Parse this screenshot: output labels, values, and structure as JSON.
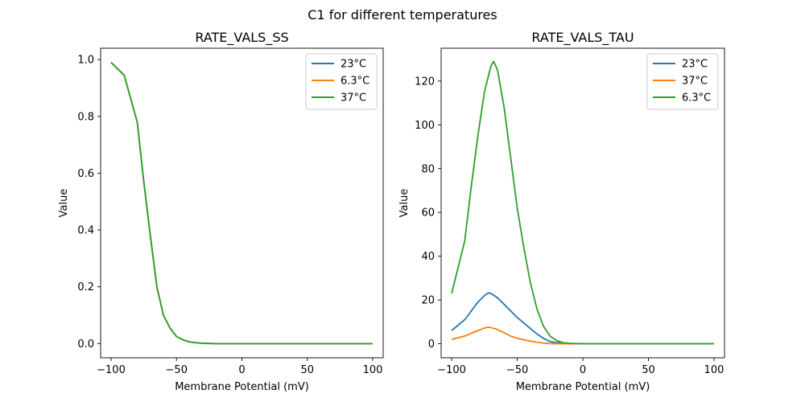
{
  "figure": {
    "suptitle": "C1 for different temperatures"
  },
  "chart_data": [
    {
      "type": "line",
      "title": "RATE_VALS_SS",
      "xlabel": "Membrane Potential (mV)",
      "ylabel": "Value",
      "xlim": [
        -108,
        108
      ],
      "ylim": [
        -0.05,
        1.04
      ],
      "xticks": [
        -100,
        -50,
        0,
        50,
        100
      ],
      "yticks": [
        0.0,
        0.2,
        0.4,
        0.6,
        0.8,
        1.0
      ],
      "xtick_labels": [
        "−100",
        "−50",
        "0",
        "50",
        "100"
      ],
      "ytick_labels": [
        "0.0",
        "0.2",
        "0.4",
        "0.6",
        "0.8",
        "1.0"
      ],
      "grid": false,
      "legend": "top-right",
      "series": [
        {
          "name": "23°C",
          "color": "#1f77b4",
          "x": [
            -100,
            -90,
            -80,
            -75,
            -70,
            -65,
            -60,
            -55,
            -50,
            -45,
            -40,
            -35,
            -30,
            -20,
            0,
            50,
            100
          ],
          "y": [
            0.99,
            0.945,
            0.78,
            0.57,
            0.38,
            0.2,
            0.1,
            0.055,
            0.025,
            0.013,
            0.006,
            0.003,
            0.001,
            0.0,
            0.0,
            0.0,
            0.0
          ]
        },
        {
          "name": "6.3°C",
          "color": "#ff7f0e",
          "x": [
            -100,
            -90,
            -80,
            -75,
            -70,
            -65,
            -60,
            -55,
            -50,
            -45,
            -40,
            -35,
            -30,
            -20,
            0,
            50,
            100
          ],
          "y": [
            0.99,
            0.945,
            0.78,
            0.57,
            0.38,
            0.2,
            0.1,
            0.055,
            0.025,
            0.013,
            0.006,
            0.003,
            0.001,
            0.0,
            0.0,
            0.0,
            0.0
          ]
        },
        {
          "name": "37°C",
          "color": "#2ca02c",
          "x": [
            -100,
            -90,
            -80,
            -75,
            -70,
            -65,
            -60,
            -55,
            -50,
            -45,
            -40,
            -35,
            -30,
            -20,
            0,
            50,
            100
          ],
          "y": [
            0.99,
            0.945,
            0.78,
            0.57,
            0.38,
            0.2,
            0.1,
            0.055,
            0.025,
            0.013,
            0.006,
            0.003,
            0.001,
            0.0,
            0.0,
            0.0,
            0.0
          ]
        }
      ]
    },
    {
      "type": "line",
      "title": "RATE_VALS_TAU",
      "xlabel": "Membrane Potential (mV)",
      "ylabel": "Value",
      "xlim": [
        -108,
        108
      ],
      "ylim": [
        -6.4,
        135
      ],
      "xticks": [
        -100,
        -50,
        0,
        50,
        100
      ],
      "yticks": [
        0,
        20,
        40,
        60,
        80,
        100,
        120
      ],
      "xtick_labels": [
        "−100",
        "−50",
        "0",
        "50",
        "100"
      ],
      "ytick_labels": [
        "0",
        "20",
        "40",
        "60",
        "80",
        "100",
        "120"
      ],
      "grid": false,
      "legend": "top-right",
      "series": [
        {
          "name": "23°C",
          "color": "#1f77b4",
          "x": [
            -100,
            -90,
            -85,
            -80,
            -75,
            -72,
            -70,
            -65,
            -60,
            -55,
            -50,
            -45,
            -40,
            -35,
            -30,
            -25,
            -20,
            -10,
            0,
            50,
            100
          ],
          "y": [
            6,
            11,
            15,
            19,
            22,
            23.2,
            23,
            21,
            18,
            15,
            12,
            9.5,
            7,
            4.5,
            2.5,
            1,
            0.5,
            0.1,
            0,
            0,
            0
          ]
        },
        {
          "name": "37°C",
          "color": "#ff7f0e",
          "x": [
            -100,
            -90,
            -85,
            -80,
            -75,
            -72,
            -70,
            -65,
            -60,
            -55,
            -50,
            -45,
            -40,
            -35,
            -30,
            -25,
            -20,
            -10,
            0,
            50,
            100
          ],
          "y": [
            2,
            3.5,
            4.8,
            6,
            7.2,
            7.6,
            7.4,
            6.5,
            5,
            3.5,
            2.5,
            1.8,
            1.2,
            0.7,
            0.3,
            0.1,
            0,
            0,
            0,
            0,
            0
          ]
        },
        {
          "name": "6.3°C",
          "color": "#2ca02c",
          "x": [
            -100,
            -90,
            -85,
            -80,
            -75,
            -70,
            -68,
            -65,
            -60,
            -55,
            -50,
            -45,
            -40,
            -35,
            -30,
            -25,
            -20,
            -15,
            -10,
            0,
            50,
            100
          ],
          "y": [
            23,
            47,
            72,
            95,
            115,
            127,
            129,
            125,
            108,
            85,
            62,
            44,
            28,
            16,
            8,
            3.5,
            1.5,
            0.5,
            0.2,
            0,
            0,
            0
          ]
        }
      ]
    }
  ]
}
